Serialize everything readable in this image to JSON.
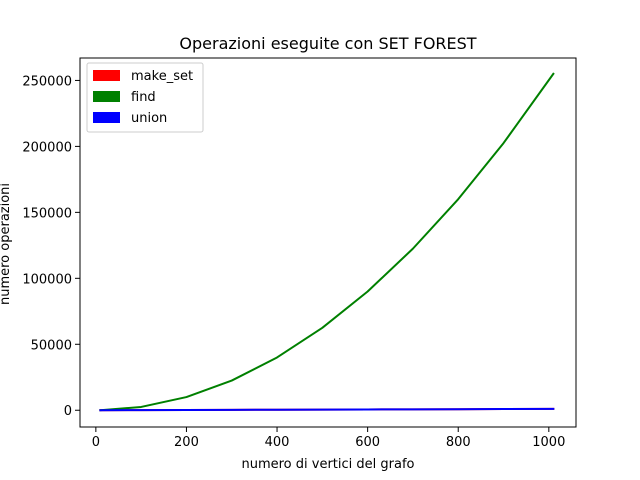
{
  "chart_data": {
    "type": "line",
    "title": "Operazioni eseguite con SET FOREST",
    "xlabel": "numero di vertici del grafo",
    "ylabel": "numero operazioni",
    "xlim": [
      -35,
      1060
    ],
    "ylim": [
      -12700,
      267000
    ],
    "xticks": [
      0,
      200,
      400,
      600,
      800,
      1000
    ],
    "yticks": [
      0,
      50000,
      100000,
      150000,
      200000,
      250000
    ],
    "xtick_labels": [
      "0",
      "200",
      "400",
      "600",
      "800",
      "1000"
    ],
    "ytick_labels": [
      "0",
      "50000",
      "100000",
      "150000",
      "200000",
      "250000"
    ],
    "legend": {
      "placement": "top-left"
    },
    "grid": false,
    "series": [
      {
        "name": "make_set",
        "color": "#ff0000",
        "x": [
          10,
          100,
          200,
          300,
          400,
          500,
          600,
          700,
          800,
          900,
          1010
        ],
        "y": [
          10,
          100,
          200,
          300,
          400,
          500,
          600,
          700,
          800,
          900,
          1010
        ]
      },
      {
        "name": "find",
        "color": "#008000",
        "x": [
          10,
          100,
          200,
          300,
          400,
          500,
          600,
          700,
          800,
          900,
          1010
        ],
        "y": [
          25,
          2500,
          10000,
          22500,
          40000,
          62500,
          90000,
          122500,
          160000,
          202500,
          255000
        ]
      },
      {
        "name": "union",
        "color": "#0000ff",
        "x": [
          10,
          100,
          200,
          300,
          400,
          500,
          600,
          700,
          800,
          900,
          1010
        ],
        "y": [
          9,
          99,
          199,
          299,
          399,
          499,
          599,
          699,
          799,
          899,
          1009
        ]
      }
    ]
  }
}
